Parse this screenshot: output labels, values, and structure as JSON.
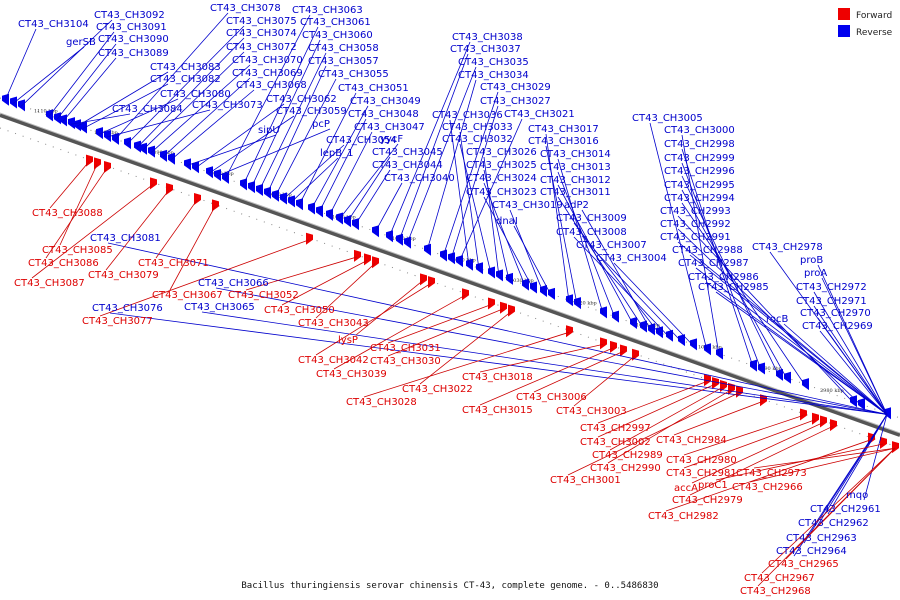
{
  "legend": {
    "forward": {
      "label": "Forward",
      "color": "#ee0000"
    },
    "reverse": {
      "label": "Reverse",
      "color": "#0000ee"
    }
  },
  "caption": "Bacillus thuringiensis serovar chinensis CT-43, complete genome. - 0..5486830",
  "ticks": [
    "1110 kbp",
    "1100 kbp",
    "1090 kbp",
    "1080 kbp",
    "1070 kbp",
    "1060 kbp",
    "1050 kbp",
    "1040 kbp",
    "1030 kbp",
    "1020 kbp",
    "1010 kbp",
    "1000 kbp",
    "2990 kbp",
    "2980 kbp"
  ],
  "reverse_genes": [
    "CT43_CH3104",
    "gerSB",
    "CT43_CH3092",
    "CT43_CH3091",
    "CT43_CH3090",
    "CT43_CH3089",
    "CT43_CH3084",
    "CT43_CH3083",
    "CT43_CH3082",
    "CT43_CH3080",
    "CT43_CH3073",
    "CT43_CH3078",
    "CT43_CH3075",
    "CT43_CH3074",
    "CT43_CH3072",
    "CT43_CH3070",
    "CT43_CH3069",
    "CT43_CH3068",
    "sipU",
    "CT43_CH3062",
    "CT43_CH3059",
    "pcP",
    "CT43_CH3063",
    "CT43_CH3061",
    "CT43_CH3060",
    "CT43_CH3058",
    "CT43_CH3057",
    "CT43_CH3055",
    "CT43_CH3054",
    "lepB_1",
    "CT43_CH3051",
    "CT43_CH3049",
    "CT43_CH3048",
    "CT43_CH3047",
    "yycF",
    "CT43_CH3045",
    "CT43_CH3044",
    "CT43_CH3040",
    "CT43_CH3038",
    "CT43_CH3037",
    "CT43_CH3035",
    "CT43_CH3034",
    "CT43_CH3029",
    "CT43_CH3027",
    "CT43_CH3021",
    "CT43_CH3036",
    "CT43_CH3033",
    "CT43_CH3032",
    "CT43_CH3026",
    "CT43_CH3025",
    "CT43_CH3024",
    "CT43_CH3023",
    "CT43_CH3019",
    "dnaI",
    "CT43_CH3017",
    "CT43_CH3016",
    "CT43_CH3014",
    "CT43_CH3013",
    "CT43_CH3012",
    "CT43_CH3011",
    "adP2",
    "CT43_CH3009",
    "CT43_CH3008",
    "CT43_CH3007",
    "CT43_CH3004",
    "CT43_CH3005",
    "CT43_CH3000",
    "CT43_CH2998",
    "CT43_CH2999",
    "CT43_CH2996",
    "CT43_CH2995",
    "CT43_CH2994",
    "CT43_CH2993",
    "CT43_CH2992",
    "CT43_CH2991",
    "CT43_CH2988",
    "CT43_CH2987",
    "CT43_CH2986",
    "CT43_CH2985",
    "CT43_CH2978",
    "proB",
    "proA",
    "CT43_CH2972",
    "CT43_CH2971",
    "rocB",
    "CT43_CH2970",
    "CT43_CH2969",
    "CT43_CH3081",
    "CT43_CH3066",
    "CT43_CH3065",
    "CT43_CH3076",
    "mqo",
    "CT43_CH2961",
    "CT43_CH2962",
    "CT43_CH2963",
    "CT43_CH2964"
  ],
  "forward_genes": [
    "CT43_CH3088",
    "CT43_CH3085",
    "CT43_CH3086",
    "CT43_CH3087",
    "CT43_CH3079",
    "CT43_CH3071",
    "CT43_CH3067",
    "CT43_CH3077",
    "CT43_CH3052",
    "CT43_CH3050",
    "CT43_CH3043",
    "lysP",
    "CT43_CH3042",
    "CT43_CH3039",
    "CT43_CH3031",
    "CT43_CH3030",
    "CT43_CH3022",
    "CT43_CH3028",
    "CT43_CH3018",
    "CT43_CH3015",
    "CT43_CH3006",
    "CT43_CH3003",
    "CT43_CH2997",
    "CT43_CH3002",
    "CT43_CH2989",
    "CT43_CH2990",
    "CT43_CH3001",
    "CT43_CH2984",
    "CT43_CH2980",
    "CT43_CH2981",
    "accA",
    "CT43_CH2979",
    "CT43_CH2982",
    "proC1",
    "CT43_CH2973",
    "CT43_CH2966",
    "CT43_CH2965",
    "CT43_CH2967",
    "CT43_CH2968"
  ]
}
